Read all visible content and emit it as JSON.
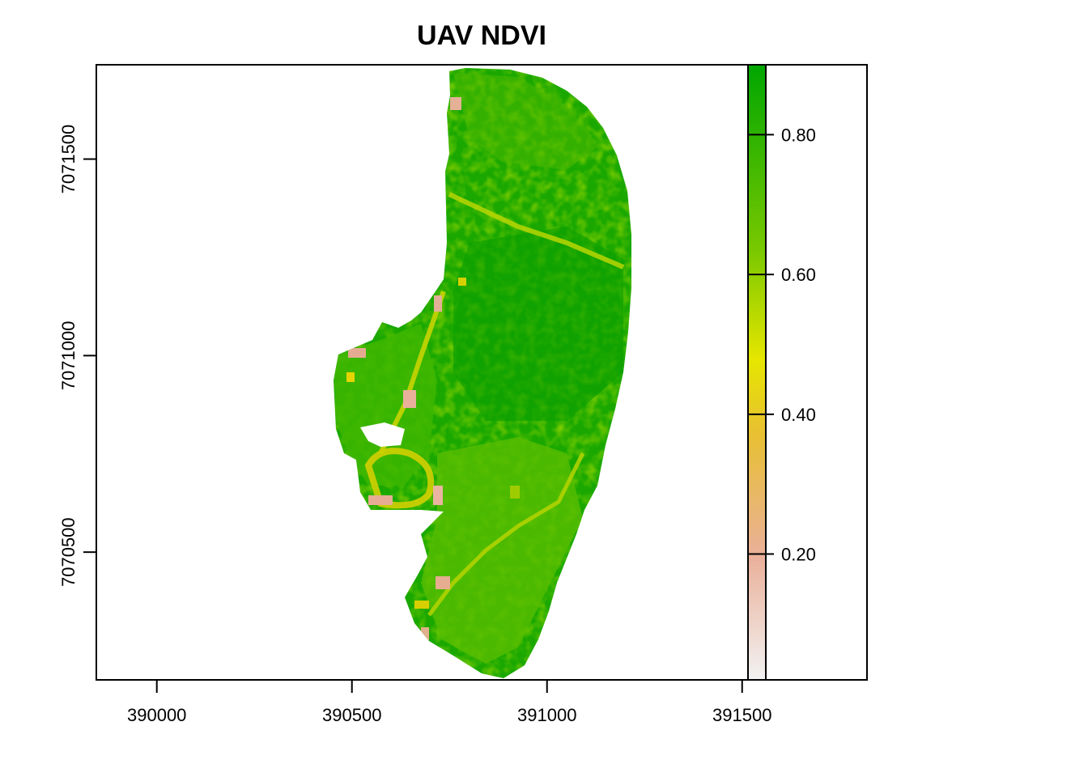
{
  "chart_data": {
    "type": "heatmap",
    "title": "UAV NDVI",
    "xlabel": "",
    "ylabel": "",
    "x_ticks": [
      390000,
      390500,
      391000,
      391500
    ],
    "y_ticks": [
      7070500,
      7071000,
      7071500
    ],
    "x_tick_labels": [
      "390000",
      "390500",
      "391000",
      "391500"
    ],
    "y_tick_labels": [
      "7070500",
      "7071000",
      "7071500"
    ],
    "xlim": [
      389845,
      391820
    ],
    "ylim": [
      7070175,
      7071740
    ],
    "grid": false,
    "legend": {
      "placement": "right",
      "range": [
        0.02,
        0.9
      ],
      "ticks": [
        0.2,
        0.4,
        0.6,
        0.8
      ],
      "tick_labels": [
        "0.20",
        "0.40",
        "0.60",
        "0.80"
      ],
      "colors": [
        "#f2f2f2",
        "#eab09a",
        "#e8c032",
        "#e6e600",
        "#78c800",
        "#00a600"
      ]
    },
    "raster_extent": {
      "xmin": 390455,
      "xmax": 391210,
      "ymin": 7070180,
      "ymax": 7071715
    }
  }
}
